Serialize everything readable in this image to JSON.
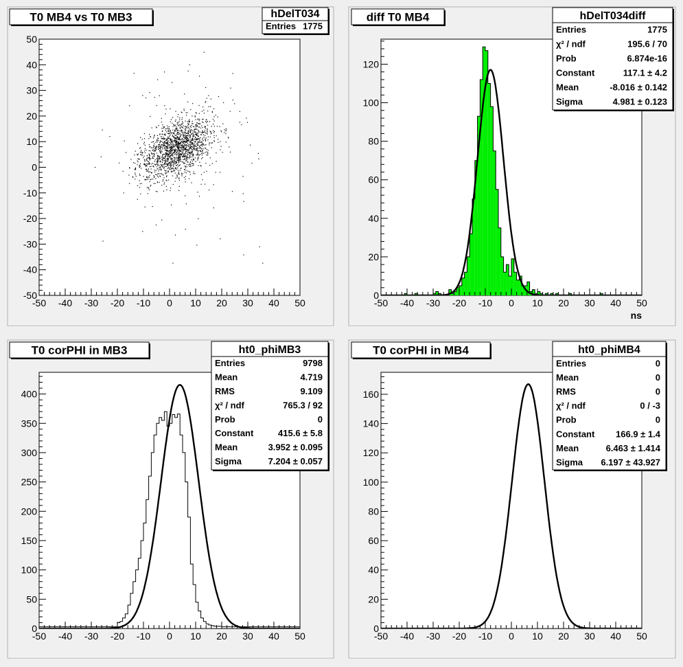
{
  "colors": {
    "background": "#efefef",
    "panel": "#f0f0f0",
    "frame": "#ffffff",
    "fill": "#00ee00",
    "line": "#000000"
  },
  "chart_data": [
    {
      "type": "scatter",
      "title": "T0 MB4 vs T0 MB3",
      "stats": {
        "name": "hDelT034",
        "rows": [
          {
            "label": "Entries",
            "value": "1775"
          }
        ]
      },
      "xlim": [
        -50,
        50
      ],
      "ylim": [
        -50,
        50
      ],
      "xticks": [
        "-50",
        "-40",
        "-30",
        "-20",
        "-10",
        "0",
        "10",
        "20",
        "30",
        "40",
        "50"
      ],
      "yticks": [
        "-50",
        "-40",
        "-30",
        "-20",
        "-10",
        "0",
        "10",
        "20",
        "30",
        "40",
        "50"
      ],
      "xlabel": "",
      "points": {
        "entries": 1775,
        "mean_x": 3,
        "mean_y": 8,
        "sigma_x": 7,
        "sigma_y": 6,
        "correlation": 0.45
      }
    },
    {
      "type": "bar",
      "title": "diff T0 MB4",
      "stats": {
        "name": "hDelT034diff",
        "rows": [
          {
            "label": "Entries",
            "value": "1775"
          },
          {
            "label": "χ² / ndf",
            "value": "195.6 / 70"
          },
          {
            "label": "Prob",
            "value": "6.874e-16"
          },
          {
            "label": "Constant",
            "value": "117.1 ± 4.2"
          },
          {
            "label": "Mean",
            "value": "-8.016 ± 0.142"
          },
          {
            "label": "Sigma",
            "value": "4.981 ± 0.123"
          }
        ]
      },
      "xlim": [
        -50,
        50
      ],
      "ylim": [
        0,
        133
      ],
      "xticks": [
        "-50",
        "-40",
        "-30",
        "-20",
        "-10",
        "0",
        "10",
        "20",
        "30",
        "40",
        "50"
      ],
      "yticks": [
        "0",
        "20",
        "40",
        "60",
        "80",
        "100",
        "120"
      ],
      "xlabel": "ns",
      "histogram": {
        "binwidth": 1,
        "filled": true,
        "values": [
          0,
          0,
          0,
          0,
          0,
          0,
          0,
          0,
          0,
          1,
          0,
          0,
          0,
          1,
          0,
          0,
          0,
          0,
          0,
          0,
          1,
          2,
          1,
          0,
          0,
          0,
          3,
          1,
          2,
          4,
          5,
          9,
          12,
          20,
          32,
          50,
          70,
          93,
          112,
          129,
          127,
          110,
          98,
          75,
          55,
          35,
          20,
          12,
          16,
          10,
          19,
          12,
          8,
          10,
          5,
          5,
          7,
          2,
          3,
          1,
          2,
          1,
          0,
          1,
          0,
          1,
          0,
          1,
          0,
          0,
          0,
          0,
          1,
          0,
          0,
          0,
          0,
          0,
          0,
          0,
          0,
          0,
          0,
          0,
          1,
          0,
          0,
          0,
          0,
          0,
          0,
          0,
          0,
          0,
          0,
          0,
          0,
          0,
          0,
          0
        ]
      },
      "fit": {
        "constant": 117.1,
        "mean": -8.016,
        "sigma": 4.981
      }
    },
    {
      "type": "line",
      "title": "T0 corPHI in MB3",
      "stats": {
        "name": "ht0_phiMB3",
        "rows": [
          {
            "label": "Entries",
            "value": "9798"
          },
          {
            "label": "Mean",
            "value": "4.719"
          },
          {
            "label": "RMS",
            "value": "9.109"
          },
          {
            "label": "χ² / ndf",
            "value": "765.3 / 92"
          },
          {
            "label": "Prob",
            "value": "0"
          },
          {
            "label": "Constant",
            "value": "415.6 ± 5.8"
          },
          {
            "label": "Mean",
            "value": "3.952 ± 0.095"
          },
          {
            "label": "Sigma",
            "value": "7.204 ± 0.057"
          }
        ]
      },
      "xlim": [
        -50,
        50
      ],
      "ylim": [
        0,
        437
      ],
      "xticks": [
        "-50",
        "-40",
        "-30",
        "-20",
        "-10",
        "0",
        "10",
        "20",
        "30",
        "40",
        "50"
      ],
      "yticks": [
        "0",
        "50",
        "100",
        "150",
        "200",
        "250",
        "300",
        "350",
        "400"
      ],
      "xlabel": "",
      "histogram": {
        "binwidth": 1,
        "filled": false,
        "values": [
          3,
          3,
          3,
          3,
          3,
          3,
          3,
          3,
          3,
          3,
          3,
          3,
          3,
          3,
          3,
          3,
          3,
          3,
          3,
          3,
          3,
          3,
          3,
          3,
          3,
          3,
          3,
          3,
          3,
          3,
          10,
          12,
          18,
          25,
          40,
          60,
          80,
          100,
          120,
          150,
          180,
          220,
          260,
          300,
          330,
          350,
          360,
          355,
          370,
          345,
          350,
          365,
          360,
          366,
          330,
          300,
          250,
          190,
          110,
          75,
          45,
          30,
          18,
          12,
          8,
          6,
          5,
          4,
          4,
          4,
          3,
          3,
          3,
          3,
          3,
          3,
          3,
          3,
          3,
          3,
          3,
          3,
          3,
          3,
          3,
          3,
          3,
          3,
          3,
          3,
          3,
          3,
          3,
          3,
          3,
          3,
          3,
          3,
          3,
          3
        ]
      },
      "fit": {
        "constant": 415.6,
        "mean": 3.952,
        "sigma": 7.204
      }
    },
    {
      "type": "line",
      "title": "T0 corPHI in MB4",
      "stats": {
        "name": "ht0_phiMB4",
        "rows": [
          {
            "label": "Entries",
            "value": "0"
          },
          {
            "label": "Mean",
            "value": "0"
          },
          {
            "label": "RMS",
            "value": "0"
          },
          {
            "label": "χ² / ndf",
            "value": "0 / -3"
          },
          {
            "label": "Prob",
            "value": "0"
          },
          {
            "label": "Constant",
            "value": "166.9 ± 1.4"
          },
          {
            "label": "Mean",
            "value": "6.463 ± 1.414"
          },
          {
            "label": "Sigma",
            "value": "6.197 ± 43.927"
          }
        ]
      },
      "xlim": [
        -50,
        50
      ],
      "ylim": [
        0,
        175
      ],
      "xticks": [
        "-50",
        "-40",
        "-30",
        "-20",
        "-10",
        "0",
        "10",
        "20",
        "30",
        "40",
        "50"
      ],
      "yticks": [
        "0",
        "20",
        "40",
        "60",
        "80",
        "100",
        "120",
        "140",
        "160"
      ],
      "xlabel": "",
      "fit": {
        "constant": 166.9,
        "mean": 6.463,
        "sigma": 6.197
      }
    }
  ]
}
